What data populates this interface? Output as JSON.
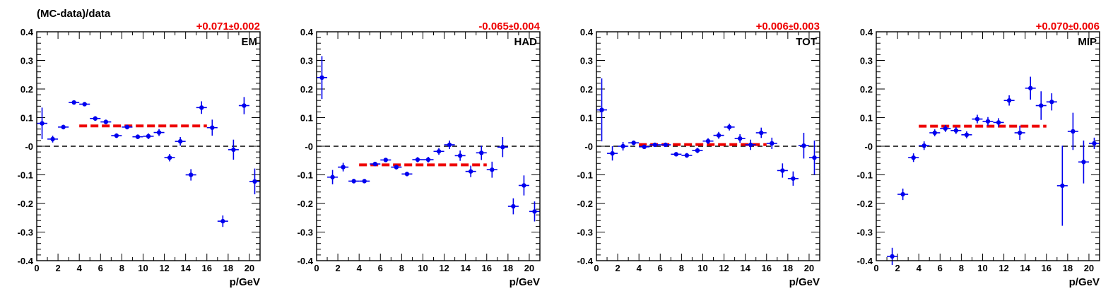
{
  "figure": {
    "ylabel": "(MC-data)/data",
    "colors": {
      "points": "#0000ee",
      "fit": "#ee0000",
      "axis": "#000000"
    }
  },
  "chart_data": [
    {
      "type": "scatter",
      "label": "EM",
      "fit_label": "+0.071",
      "fit_err": "0.002",
      "fit_value": 0.071,
      "fit_range": [
        4,
        16
      ],
      "xlabel": "p/GeV",
      "xlim": [
        0,
        21
      ],
      "ylim": [
        -0.4,
        0.4
      ],
      "x_ticks": [
        "0",
        "2",
        "4",
        "6",
        "8",
        "10",
        "12",
        "14",
        "16",
        "18",
        "20"
      ],
      "y_ticks": [
        "-0.4",
        "-0.3",
        "-0.2",
        "-0.1",
        "-0",
        "0.1",
        "0.2",
        "0.3",
        "0.4"
      ],
      "x": [
        0.5,
        1.5,
        2.5,
        3.5,
        4.5,
        5.5,
        6.5,
        7.5,
        8.5,
        9.5,
        10.5,
        11.5,
        12.5,
        13.5,
        14.5,
        15.5,
        16.5,
        17.5,
        18.5,
        19.5,
        20.5
      ],
      "y": [
        0.08,
        0.025,
        0.067,
        0.153,
        0.147,
        0.097,
        0.085,
        0.037,
        0.067,
        0.033,
        0.035,
        0.048,
        -0.04,
        0.017,
        -0.1,
        0.135,
        0.065,
        -0.262,
        -0.012,
        0.142,
        -0.123
      ],
      "yerr": [
        0.055,
        0.012,
        0.008,
        0.007,
        0.007,
        0.008,
        0.008,
        0.008,
        0.008,
        0.008,
        0.01,
        0.012,
        0.013,
        0.015,
        0.02,
        0.022,
        0.028,
        0.02,
        0.035,
        0.03,
        0.045
      ]
    },
    {
      "type": "scatter",
      "label": "HAD",
      "fit_label": "-0.065",
      "fit_err": "0.004",
      "fit_value": -0.065,
      "fit_range": [
        4,
        16
      ],
      "xlabel": "p/GeV",
      "xlim": [
        0,
        21
      ],
      "ylim": [
        -0.4,
        0.4
      ],
      "x_ticks": [
        "0",
        "2",
        "4",
        "6",
        "8",
        "10",
        "12",
        "14",
        "16",
        "18",
        "20"
      ],
      "y_ticks": [
        "-0.4",
        "-0.3",
        "-0.2",
        "-0.1",
        "-0",
        "0.1",
        "0.2",
        "0.3",
        "0.4"
      ],
      "x": [
        0.5,
        1.5,
        2.5,
        3.5,
        4.5,
        5.5,
        6.5,
        7.5,
        8.5,
        9.5,
        10.5,
        11.5,
        12.5,
        13.5,
        14.5,
        15.5,
        16.5,
        17.5,
        18.5,
        19.5,
        20.5
      ],
      "y": [
        0.24,
        -0.108,
        -0.073,
        -0.122,
        -0.122,
        -0.062,
        -0.048,
        -0.073,
        -0.097,
        -0.047,
        -0.047,
        -0.018,
        0.005,
        -0.033,
        -0.088,
        -0.023,
        -0.082,
        -0.003,
        -0.21,
        -0.137,
        -0.228
      ],
      "yerr": [
        0.075,
        0.025,
        0.015,
        0.008,
        0.007,
        0.007,
        0.007,
        0.008,
        0.008,
        0.009,
        0.01,
        0.012,
        0.015,
        0.018,
        0.02,
        0.025,
        0.028,
        0.035,
        0.028,
        0.035,
        0.035
      ]
    },
    {
      "type": "scatter",
      "label": "TOT",
      "fit_label": "+0.006",
      "fit_err": "0.003",
      "fit_value": 0.006,
      "fit_range": [
        4,
        16
      ],
      "xlabel": "p/GeV",
      "xlim": [
        0,
        21
      ],
      "ylim": [
        -0.4,
        0.4
      ],
      "x_ticks": [
        "0",
        "2",
        "4",
        "6",
        "8",
        "10",
        "12",
        "14",
        "16",
        "18",
        "20"
      ],
      "y_ticks": [
        "-0.4",
        "-0.3",
        "-0.2",
        "-0.1",
        "-0",
        "0.1",
        "0.2",
        "0.3",
        "0.4"
      ],
      "x": [
        0.5,
        1.5,
        2.5,
        3.5,
        4.5,
        5.5,
        6.5,
        7.5,
        8.5,
        9.5,
        10.5,
        11.5,
        12.5,
        13.5,
        14.5,
        15.5,
        16.5,
        17.5,
        18.5,
        19.5,
        20.5
      ],
      "y": [
        0.127,
        -0.025,
        0.0,
        0.012,
        -0.002,
        0.005,
        0.005,
        -0.028,
        -0.032,
        -0.015,
        0.018,
        0.038,
        0.067,
        0.027,
        0.005,
        0.047,
        0.01,
        -0.085,
        -0.113,
        0.002,
        -0.04
      ],
      "yerr": [
        0.11,
        0.025,
        0.015,
        0.008,
        0.006,
        0.006,
        0.006,
        0.007,
        0.008,
        0.009,
        0.01,
        0.012,
        0.012,
        0.015,
        0.018,
        0.018,
        0.02,
        0.025,
        0.025,
        0.045,
        0.06
      ]
    },
    {
      "type": "scatter",
      "label": "MIP",
      "fit_label": "+0.070",
      "fit_err": "0.006",
      "fit_value": 0.07,
      "fit_range": [
        4,
        16
      ],
      "xlabel": "p/GeV",
      "xlim": [
        0,
        21
      ],
      "ylim": [
        -0.4,
        0.4
      ],
      "x_ticks": [
        "0",
        "2",
        "4",
        "6",
        "8",
        "10",
        "12",
        "14",
        "16",
        "18",
        "20"
      ],
      "y_ticks": [
        "-0.4",
        "-0.3",
        "-0.2",
        "-0.1",
        "-0",
        "0.1",
        "0.2",
        "0.3",
        "0.4"
      ],
      "x": [
        1.5,
        2.5,
        3.5,
        4.5,
        5.5,
        6.5,
        7.5,
        8.5,
        9.5,
        10.5,
        11.5,
        12.5,
        13.5,
        14.5,
        15.5,
        16.5,
        17.5,
        18.5,
        19.5,
        20.5
      ],
      "y": [
        -0.385,
        -0.168,
        -0.04,
        0.002,
        0.047,
        0.062,
        0.055,
        0.04,
        0.095,
        0.087,
        0.083,
        0.16,
        0.047,
        0.203,
        0.142,
        0.155,
        -0.138,
        0.052,
        -0.055,
        0.01
      ],
      "yerr": [
        0.03,
        0.02,
        0.015,
        0.015,
        0.012,
        0.012,
        0.012,
        0.012,
        0.015,
        0.015,
        0.015,
        0.018,
        0.025,
        0.04,
        0.05,
        0.03,
        0.14,
        0.065,
        0.075,
        0.02
      ]
    }
  ]
}
